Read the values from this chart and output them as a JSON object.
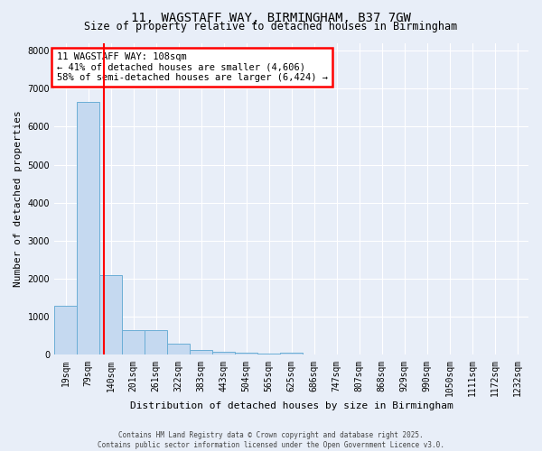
{
  "title_line1": "11, WAGSTAFF WAY, BIRMINGHAM, B37 7GW",
  "title_line2": "Size of property relative to detached houses in Birmingham",
  "xlabel": "Distribution of detached houses by size in Birmingham",
  "ylabel": "Number of detached properties",
  "bar_labels": [
    "19sqm",
    "79sqm",
    "140sqm",
    "201sqm",
    "261sqm",
    "322sqm",
    "383sqm",
    "443sqm",
    "504sqm",
    "565sqm",
    "625sqm",
    "686sqm",
    "747sqm",
    "807sqm",
    "868sqm",
    "929sqm",
    "990sqm",
    "1050sqm",
    "1111sqm",
    "1172sqm",
    "1232sqm"
  ],
  "bar_values": [
    1300,
    6650,
    2100,
    650,
    650,
    290,
    130,
    90,
    50,
    40,
    50,
    0,
    0,
    0,
    0,
    0,
    0,
    0,
    0,
    0,
    0
  ],
  "bar_color": "#c5d9f0",
  "bar_edge_color": "#6baed6",
  "red_line_x": 1.7,
  "property_name": "11 WAGSTAFF WAY: 108sqm",
  "pct_smaller": 41,
  "count_smaller": "4,606",
  "pct_larger_semi": 58,
  "count_larger_semi": "6,424",
  "ylim": [
    0,
    8200
  ],
  "yticks": [
    0,
    1000,
    2000,
    3000,
    4000,
    5000,
    6000,
    7000,
    8000
  ],
  "footer_line1": "Contains HM Land Registry data © Crown copyright and database right 2025.",
  "footer_line2": "Contains public sector information licensed under the Open Government Licence v3.0.",
  "background_color": "#e8eef8",
  "plot_bg_color": "#e8eef8",
  "grid_color": "#ffffff",
  "title_fontsize": 10,
  "subtitle_fontsize": 8.5,
  "ylabel_fontsize": 8,
  "xlabel_fontsize": 8,
  "tick_fontsize": 7,
  "annot_fontsize": 7.5
}
